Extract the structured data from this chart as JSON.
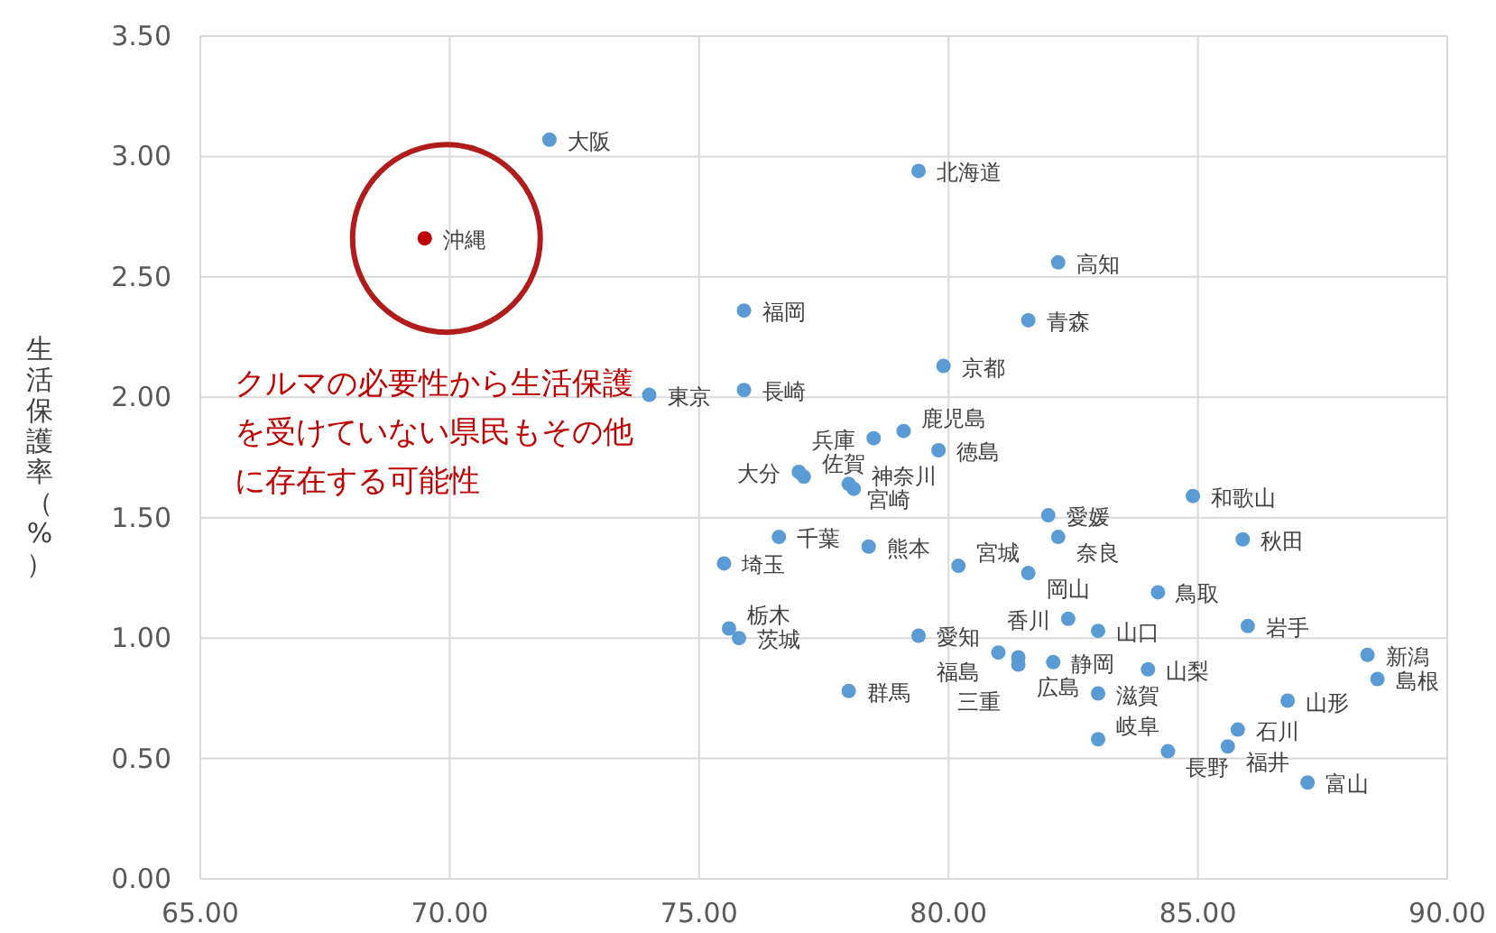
{
  "chart_data": {
    "type": "scatter",
    "ylabel": "生活保護率（%）",
    "xlim": [
      65,
      90
    ],
    "xticks": [
      {
        "value": 65,
        "label": "65.00"
      },
      {
        "value": 70,
        "label": "70.00"
      },
      {
        "value": 75,
        "label": "75.00"
      },
      {
        "value": 80,
        "label": "80.00"
      },
      {
        "value": 85,
        "label": "85.00"
      },
      {
        "value": 90,
        "label": "90.00"
      }
    ],
    "ylim": [
      0,
      3.5
    ],
    "yticks": [
      {
        "value": 0,
        "label": "0.00"
      },
      {
        "value": 0.5,
        "label": "0.50"
      },
      {
        "value": 1,
        "label": "1.00"
      },
      {
        "value": 1.5,
        "label": "1.50"
      },
      {
        "value": 2,
        "label": "2.00"
      },
      {
        "value": 2.5,
        "label": "2.50"
      },
      {
        "value": 3,
        "label": "3.00"
      },
      {
        "value": 3.5,
        "label": "3.50"
      }
    ],
    "grid": true,
    "marker": "circle",
    "series": [
      {
        "x": [
          72.0,
          69.5,
          79.4,
          82.2,
          81.6,
          75.9,
          79.9,
          74.0,
          75.9,
          78.5,
          79.1,
          79.8,
          77.0,
          77.1,
          78.0,
          78.1,
          84.9,
          82.0,
          82.2,
          85.9,
          76.6,
          78.4,
          75.5,
          80.2,
          81.6,
          84.2,
          82.4,
          83.0,
          86.0,
          75.6,
          75.8,
          79.4,
          78.0,
          81.0,
          81.4,
          81.4,
          82.1,
          84.0,
          83.0,
          88.4,
          88.6,
          86.8,
          85.8,
          83.0,
          84.4,
          85.6,
          87.2
        ],
        "values": [
          3.07,
          2.66,
          2.94,
          2.56,
          2.32,
          2.36,
          2.13,
          2.01,
          2.03,
          1.83,
          1.86,
          1.78,
          1.69,
          1.67,
          1.64,
          1.62,
          1.59,
          1.51,
          1.42,
          1.41,
          1.42,
          1.38,
          1.31,
          1.3,
          1.27,
          1.19,
          1.08,
          1.03,
          1.05,
          1.04,
          1.0,
          1.01,
          0.78,
          0.94,
          0.92,
          0.89,
          0.9,
          0.87,
          0.77,
          0.93,
          0.83,
          0.74,
          0.62,
          0.58,
          0.53,
          0.55,
          0.4
        ],
        "colors": [
          "#5b9bd5",
          "#c00000",
          "#5b9bd5",
          "#5b9bd5",
          "#5b9bd5",
          "#5b9bd5",
          "#5b9bd5",
          "#5b9bd5",
          "#5b9bd5",
          "#5b9bd5",
          "#5b9bd5",
          "#5b9bd5",
          "#5b9bd5",
          "#5b9bd5",
          "#5b9bd5",
          "#5b9bd5",
          "#5b9bd5",
          "#5b9bd5",
          "#5b9bd5",
          "#5b9bd5",
          "#5b9bd5",
          "#5b9bd5",
          "#5b9bd5",
          "#5b9bd5",
          "#5b9bd5",
          "#5b9bd5",
          "#5b9bd5",
          "#5b9bd5",
          "#5b9bd5",
          "#5b9bd5",
          "#5b9bd5",
          "#5b9bd5",
          "#5b9bd5",
          "#5b9bd5",
          "#5b9bd5",
          "#5b9bd5",
          "#5b9bd5",
          "#5b9bd5",
          "#5b9bd5",
          "#5b9bd5",
          "#5b9bd5",
          "#5b9bd5",
          "#5b9bd5",
          "#5b9bd5",
          "#5b9bd5",
          "#5b9bd5",
          "#5b9bd5"
        ]
      }
    ],
    "annotations": [
      {
        "text": "大阪",
        "x": 72.0,
        "y": 3.07
      },
      {
        "text": "沖縄",
        "x": 69.5,
        "y": 2.66
      },
      {
        "text": "北海道",
        "x": 79.4,
        "y": 2.94
      },
      {
        "text": "高知",
        "x": 82.2,
        "y": 2.56
      },
      {
        "text": "青森",
        "x": 81.6,
        "y": 2.32
      },
      {
        "text": "福岡",
        "x": 75.9,
        "y": 2.36
      },
      {
        "text": "京都",
        "x": 79.9,
        "y": 2.13
      },
      {
        "text": "東京",
        "x": 74.0,
        "y": 2.01
      },
      {
        "text": "長崎",
        "x": 75.9,
        "y": 2.03
      },
      {
        "text": "兵庫",
        "x": 78.5,
        "y": 1.83
      },
      {
        "text": "鹿児島",
        "x": 79.1,
        "y": 1.86
      },
      {
        "text": "徳島",
        "x": 79.8,
        "y": 1.78
      },
      {
        "text": "大分",
        "x": 77.0,
        "y": 1.69
      },
      {
        "text": "佐賀",
        "x": 77.1,
        "y": 1.67
      },
      {
        "text": "宮崎",
        "x": 78.0,
        "y": 1.64
      },
      {
        "text": "神奈川",
        "x": 78.1,
        "y": 1.62
      },
      {
        "text": "和歌山",
        "x": 84.9,
        "y": 1.59
      },
      {
        "text": "愛媛",
        "x": 82.0,
        "y": 1.51
      },
      {
        "text": "奈良",
        "x": 82.2,
        "y": 1.42
      },
      {
        "text": "秋田",
        "x": 85.9,
        "y": 1.41
      },
      {
        "text": "千葉",
        "x": 76.6,
        "y": 1.42
      },
      {
        "text": "熊本",
        "x": 78.4,
        "y": 1.38
      },
      {
        "text": "埼玉",
        "x": 75.5,
        "y": 1.31
      },
      {
        "text": "宮城",
        "x": 80.2,
        "y": 1.3
      },
      {
        "text": "岡山",
        "x": 81.6,
        "y": 1.27
      },
      {
        "text": "鳥取",
        "x": 84.2,
        "y": 1.19
      },
      {
        "text": "香川",
        "x": 82.4,
        "y": 1.08
      },
      {
        "text": "山口",
        "x": 83.0,
        "y": 1.03
      },
      {
        "text": "岩手",
        "x": 86.0,
        "y": 1.05
      },
      {
        "text": "栃木",
        "x": 75.6,
        "y": 1.04
      },
      {
        "text": "茨城",
        "x": 75.8,
        "y": 1.0
      },
      {
        "text": "愛知",
        "x": 79.4,
        "y": 1.01
      },
      {
        "text": "群馬",
        "x": 78.0,
        "y": 0.78
      },
      {
        "text": "福島",
        "x": 81.0,
        "y": 0.94
      },
      {
        "text": "広島",
        "x": 81.4,
        "y": 0.92
      },
      {
        "text": "三重",
        "x": 81.4,
        "y": 0.89
      },
      {
        "text": "静岡",
        "x": 82.1,
        "y": 0.9
      },
      {
        "text": "山梨",
        "x": 84.0,
        "y": 0.87
      },
      {
        "text": "滋賀",
        "x": 83.0,
        "y": 0.77
      },
      {
        "text": "新潟",
        "x": 88.4,
        "y": 0.93
      },
      {
        "text": "島根",
        "x": 88.6,
        "y": 0.83
      },
      {
        "text": "山形",
        "x": 86.8,
        "y": 0.74
      },
      {
        "text": "石川",
        "x": 85.8,
        "y": 0.62
      },
      {
        "text": "岐阜",
        "x": 83.0,
        "y": 0.58
      },
      {
        "text": "長野",
        "x": 84.4,
        "y": 0.53
      },
      {
        "text": "福井",
        "x": 85.6,
        "y": 0.55
      },
      {
        "text": "富山",
        "x": 87.2,
        "y": 0.4
      },
      "クルマの必要性から生活保護を受けていない県民もその他に存在する可能性"
    ]
  }
}
